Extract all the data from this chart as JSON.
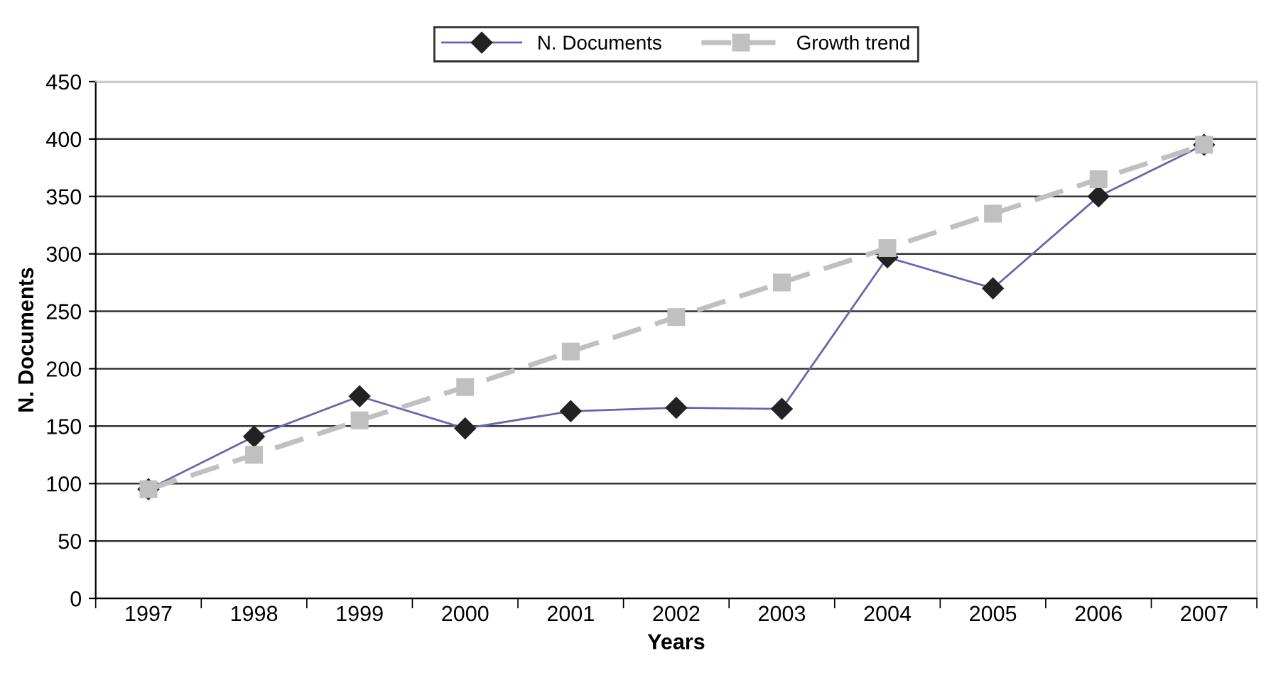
{
  "chart_data": {
    "type": "line",
    "xlabel": "Years",
    "ylabel": "N. Documents",
    "categories": [
      "1997",
      "1998",
      "1999",
      "2000",
      "2001",
      "2002",
      "2003",
      "2004",
      "2005",
      "2006",
      "2007"
    ],
    "series": [
      {
        "name": "N. Documents",
        "color": "#6666aa",
        "marker": "diamond",
        "line_style": "solid",
        "values": [
          95,
          141,
          176,
          148,
          163,
          166,
          165,
          297,
          270,
          350,
          395
        ]
      },
      {
        "name": "Growth trend",
        "color": "#c0c0c0",
        "marker": "square",
        "line_style": "dashed",
        "values": [
          95,
          125,
          155,
          184,
          215,
          245,
          275,
          305,
          335,
          365,
          395
        ]
      }
    ],
    "ylim": [
      0,
      450
    ],
    "yticks": [
      0,
      50,
      100,
      150,
      200,
      250,
      300,
      350,
      400,
      450
    ],
    "grid": "y",
    "legend": "top"
  }
}
